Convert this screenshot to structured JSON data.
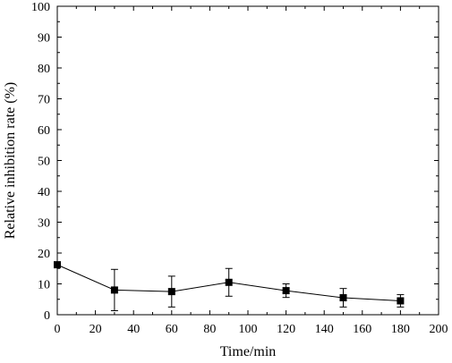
{
  "chart_data": {
    "type": "scatter",
    "title": "",
    "xlabel": "Time/min",
    "ylabel": "Relative inhibition rate (%)",
    "xlim": [
      0,
      200
    ],
    "ylim": [
      0,
      100
    ],
    "x_ticks": [
      0,
      20,
      40,
      60,
      80,
      100,
      120,
      140,
      160,
      180,
      200
    ],
    "y_ticks": [
      0,
      10,
      20,
      30,
      40,
      50,
      60,
      70,
      80,
      90,
      100
    ],
    "x_tick_labels": [
      "0",
      "20",
      "40",
      "60",
      "80",
      "100",
      "120",
      "140",
      "160",
      "180",
      "200"
    ],
    "y_tick_labels": [
      "0",
      "10",
      "20",
      "30",
      "40",
      "50",
      "60",
      "70",
      "80",
      "90",
      "100"
    ],
    "grid": false,
    "legend": "none",
    "marker": "filled-square",
    "connected_by_line": true,
    "series": [
      {
        "x": [
          0,
          30,
          60,
          90,
          120,
          150,
          180
        ],
        "y": [
          16.2,
          8.0,
          7.5,
          10.5,
          7.8,
          5.5,
          4.5
        ],
        "error": [
          0,
          6.7,
          5.0,
          4.5,
          2.2,
          3.0,
          2.0
        ],
        "color": "#000000"
      }
    ]
  }
}
